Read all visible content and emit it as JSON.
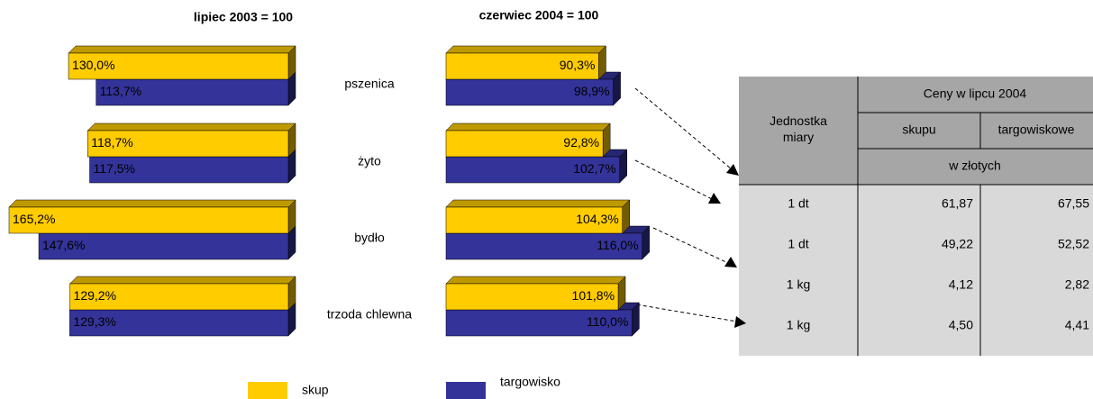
{
  "chart_data": [
    {
      "type": "hbar3d",
      "title": "lipiec 2003 = 100",
      "categories": [
        "pszenica",
        "żyto",
        "bydło",
        "trzoda chlewna"
      ],
      "direction": "left",
      "series": [
        {
          "name": "skup",
          "color": "#ffcc00",
          "values": [
            130.0,
            118.7,
            165.2,
            129.2
          ],
          "value_labels": [
            "130,0%",
            "118,7%",
            "165,2%",
            "129,2%"
          ]
        },
        {
          "name": "targowisko",
          "color": "#333399",
          "values": [
            113.7,
            117.5,
            147.6,
            129.3
          ],
          "value_labels": [
            "113,7%",
            "117,5%",
            "147,6%",
            "129,3%"
          ]
        }
      ]
    },
    {
      "type": "hbar3d",
      "title": "czerwiec 2004 = 100",
      "direction": "right",
      "series": [
        {
          "name": "skup",
          "color": "#ffcc00",
          "values": [
            90.3,
            92.8,
            104.3,
            101.8
          ],
          "value_labels": [
            "90,3%",
            "92,8%",
            "104,3%",
            "101,8%"
          ]
        },
        {
          "name": "targowisko",
          "color": "#333399",
          "values": [
            98.9,
            102.7,
            116.0,
            110.0
          ],
          "value_labels": [
            "98,9%",
            "102,7%",
            "116,0%",
            "110,0%"
          ]
        }
      ]
    }
  ],
  "table": {
    "header": {
      "unit": "Jednostka miary",
      "group": "Ceny w lipcu 2004",
      "col1": "skupu",
      "col2": "targowiskowe",
      "currency": "w złotych"
    },
    "rows": [
      [
        "1 dt",
        "61,87",
        "67,55"
      ],
      [
        "1 dt",
        "49,22",
        "52,52"
      ],
      [
        "1 kg",
        "4,12",
        "2,82"
      ],
      [
        "1 kg",
        "4,50",
        "4,41"
      ]
    ]
  }
}
